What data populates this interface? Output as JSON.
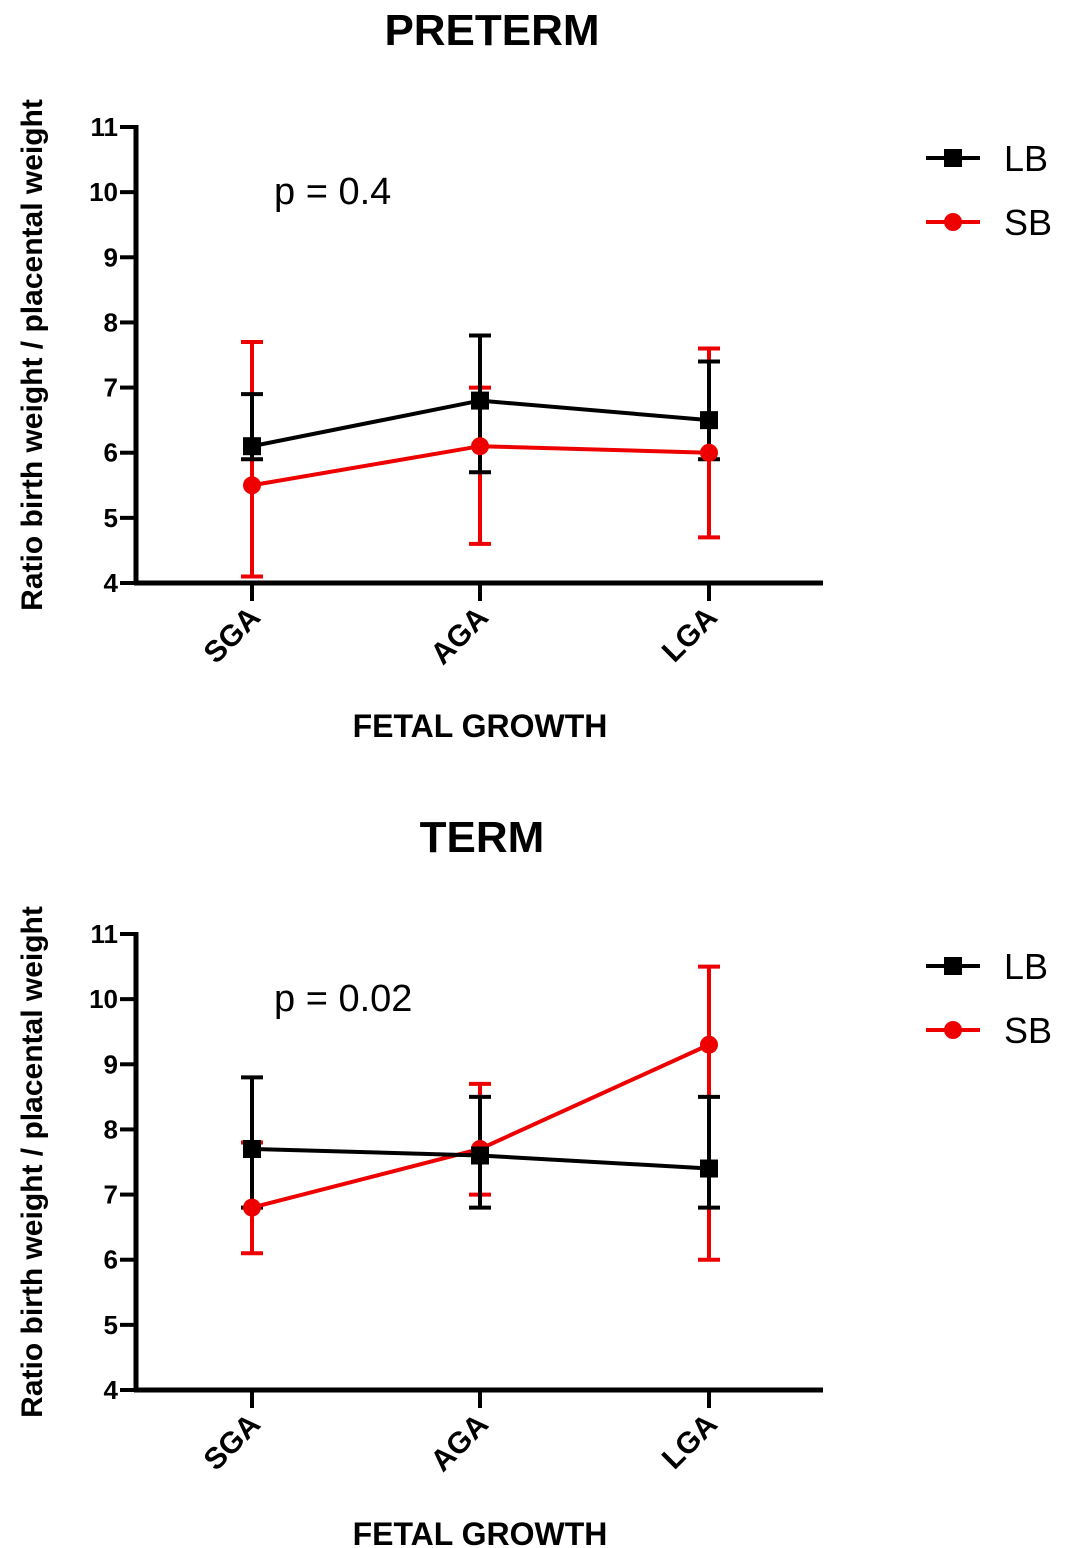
{
  "chart_data": [
    {
      "type": "line",
      "title": "PRETERM",
      "xlabel": "FETAL GROWTH",
      "ylabel": "Ratio birth weight / placental weight",
      "categories": [
        "SGA",
        "AGA",
        "LGA"
      ],
      "ylim": [
        4,
        11
      ],
      "yticks": [
        "4",
        "5",
        "6",
        "7",
        "8",
        "9",
        "10",
        "11"
      ],
      "annotation": "p = 0.4",
      "legend_position": "top-right",
      "series": [
        {
          "name": "LB",
          "color": "#000000",
          "marker": "square",
          "values": [
            6.1,
            6.8,
            6.5
          ],
          "err_low": [
            5.9,
            5.7,
            5.9
          ],
          "err_high": [
            6.9,
            7.8,
            7.4
          ]
        },
        {
          "name": "SB",
          "color": "#ee0000",
          "marker": "circle",
          "values": [
            5.5,
            6.1,
            6.0
          ],
          "err_low": [
            4.1,
            4.6,
            4.7
          ],
          "err_high": [
            7.7,
            7.0,
            7.6
          ]
        }
      ]
    },
    {
      "type": "line",
      "title": "TERM",
      "xlabel": "FETAL GROWTH",
      "ylabel": "Ratio birth weight / placental weight",
      "categories": [
        "SGA",
        "AGA",
        "LGA"
      ],
      "ylim": [
        4,
        11
      ],
      "yticks": [
        "4",
        "5",
        "6",
        "7",
        "8",
        "9",
        "10",
        "11"
      ],
      "annotation": "p = 0.02",
      "legend_position": "top-right",
      "series": [
        {
          "name": "LB",
          "color": "#000000",
          "marker": "square",
          "values": [
            7.7,
            7.6,
            7.4
          ],
          "err_low": [
            6.8,
            6.8,
            6.8
          ],
          "err_high": [
            8.8,
            8.5,
            8.5
          ]
        },
        {
          "name": "SB",
          "color": "#ee0000",
          "marker": "circle",
          "values": [
            6.8,
            7.7,
            9.3
          ],
          "err_low": [
            6.1,
            7.0,
            6.0
          ],
          "err_high": [
            7.8,
            8.7,
            10.5
          ]
        }
      ]
    }
  ]
}
